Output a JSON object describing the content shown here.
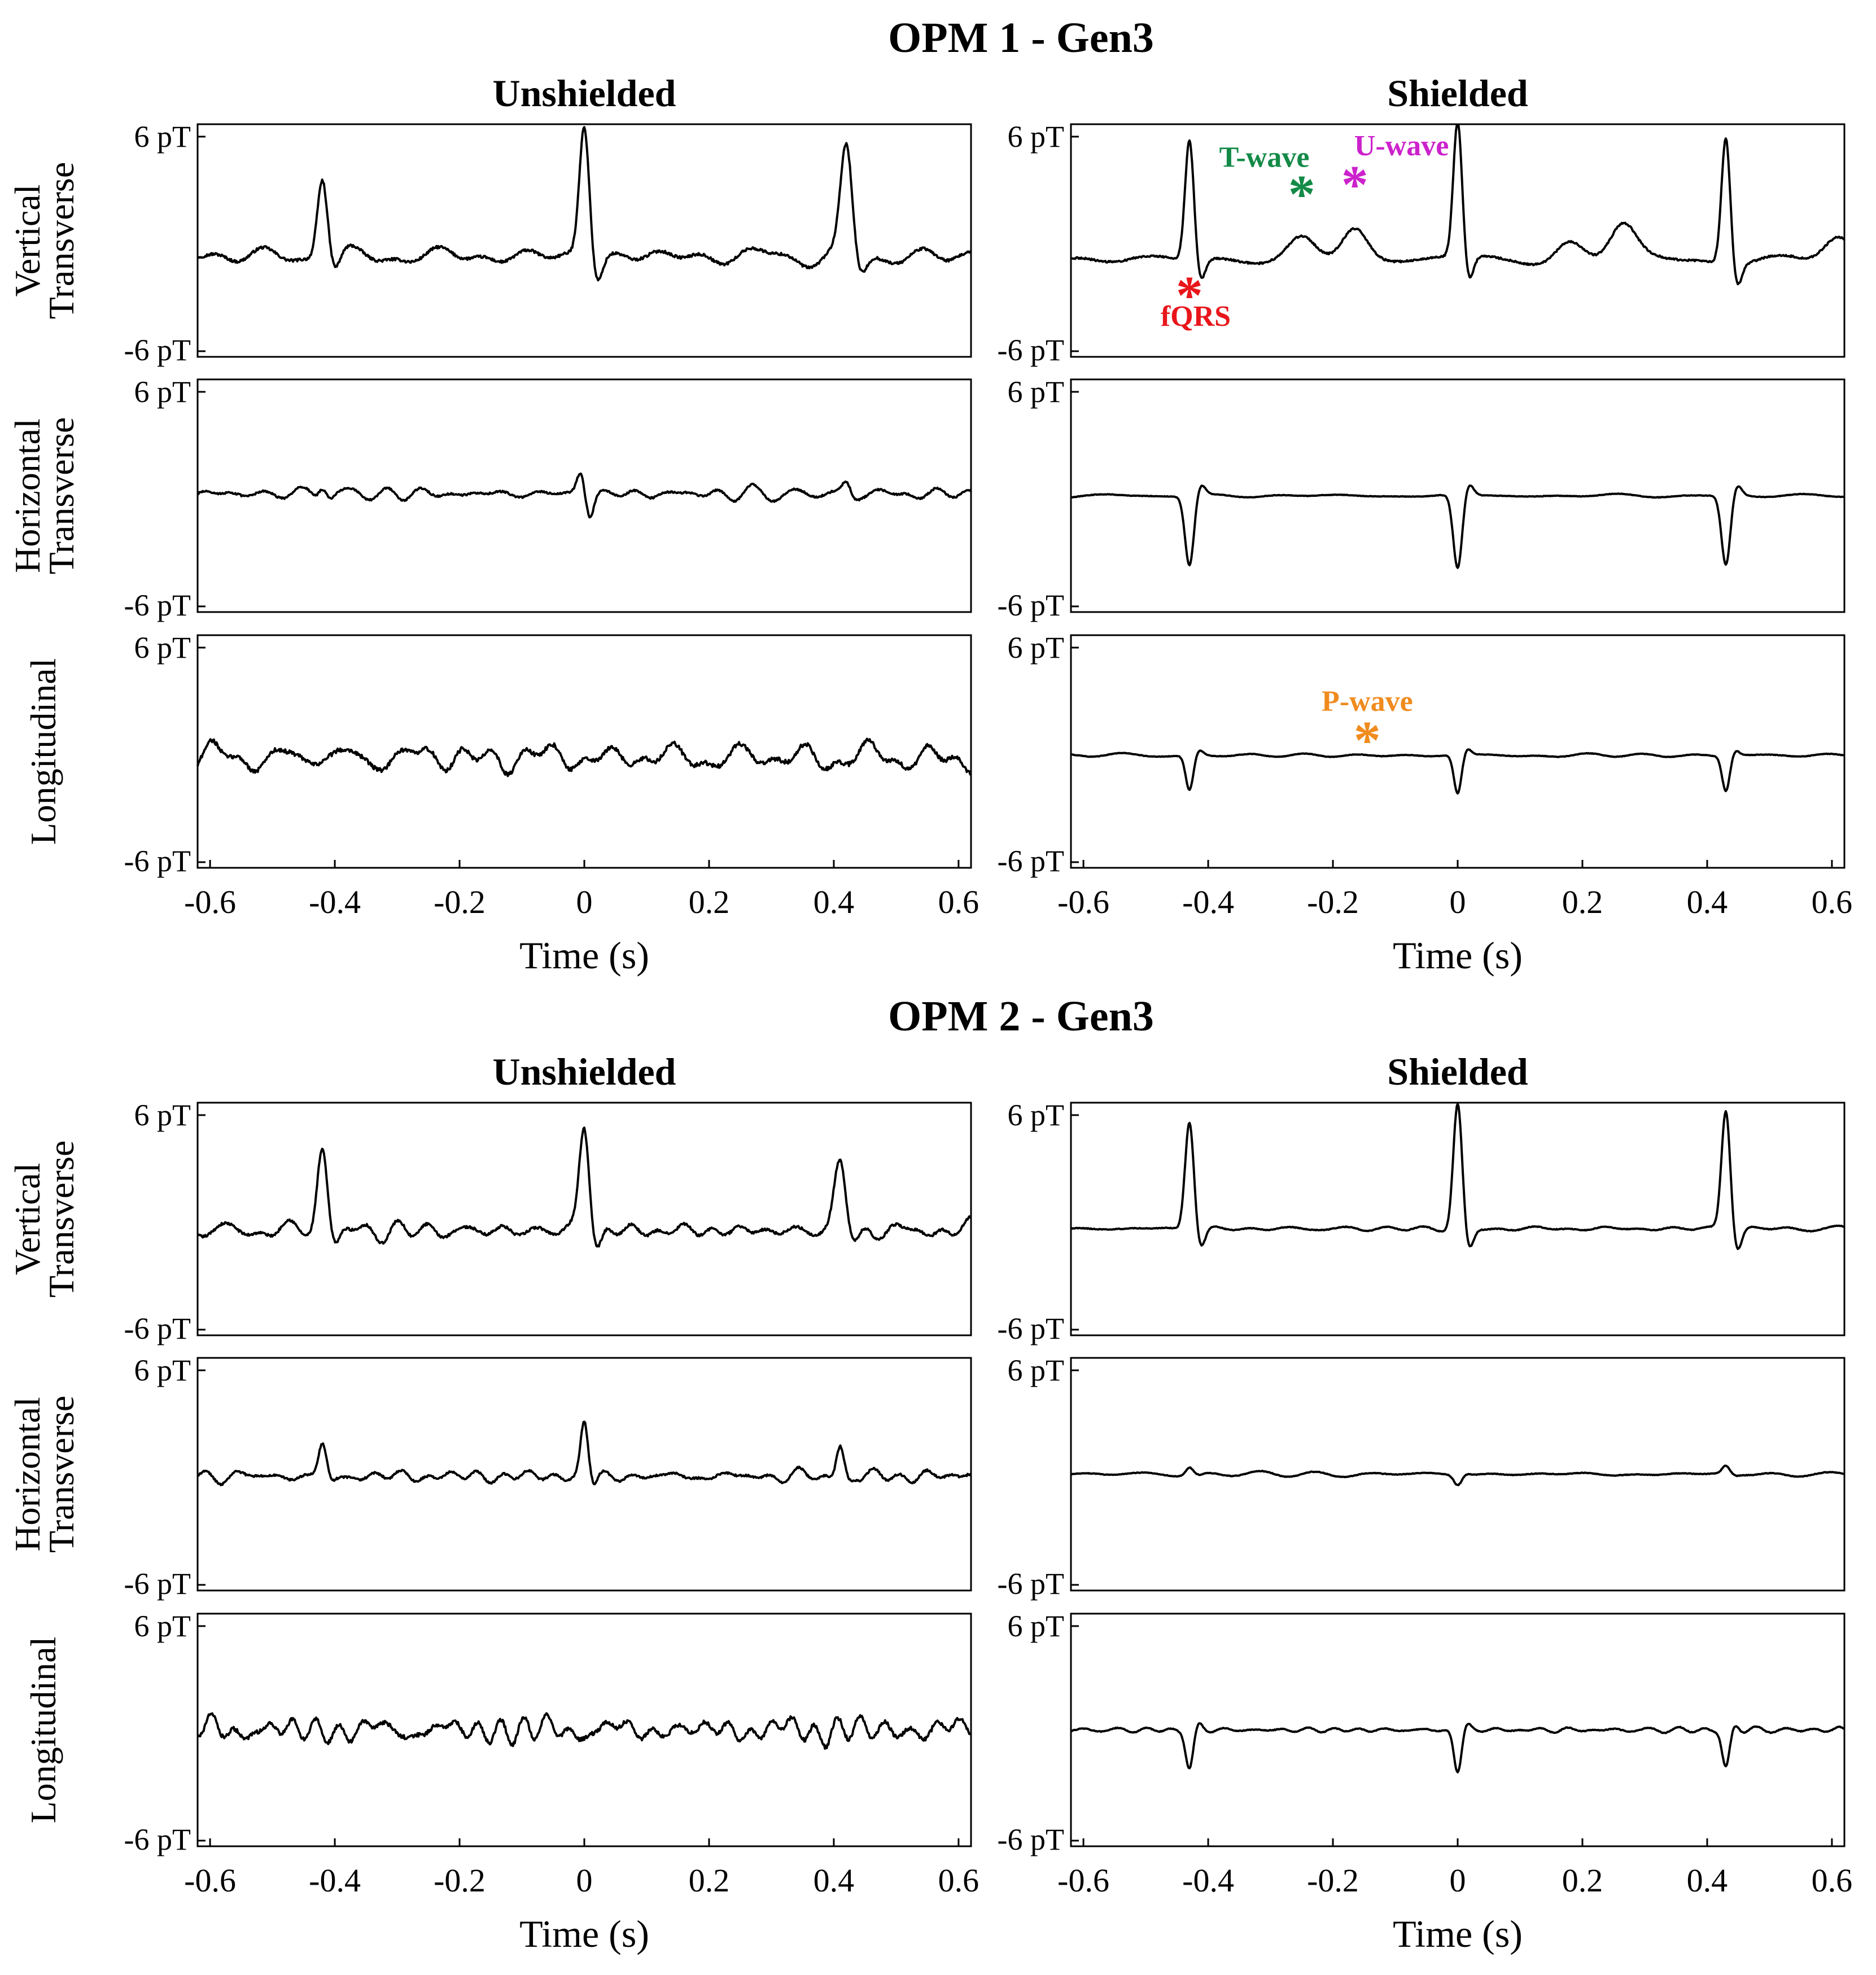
{
  "chart_data": [
    {
      "type": "line",
      "title": "OPM 1 - Gen3",
      "row_labels": [
        [
          "Vertical",
          "Transverse"
        ],
        [
          "Horizontal",
          "Transverse"
        ],
        [
          "Longitudinal"
        ]
      ],
      "columns": [
        {
          "title": "Unshielded",
          "traces": [
            {
              "name": "Vertical Transverse",
              "baseline": -0.8,
              "noise": 0.55,
              "noise_freq": 10,
              "beats": [
                {
                  "t": -0.42,
                  "kind": "spike",
                  "amp": 4.2,
                  "width": 0.008
                },
                {
                  "t": 0.0,
                  "kind": "spike",
                  "amp": 6.8,
                  "width": 0.008
                },
                {
                  "t": 0.42,
                  "kind": "spike",
                  "amp": 5.4,
                  "width": 0.009
                }
              ]
            },
            {
              "name": "Horizontal Transverse",
              "baseline": 0.1,
              "noise": 0.35,
              "noise_freq": 16,
              "beats": [
                {
                  "t": -0.42,
                  "kind": "spike",
                  "amp": 0.6,
                  "width": 0.006
                },
                {
                  "t": 0.0,
                  "kind": "biphasic",
                  "amp": 1.2,
                  "width": 0.006
                },
                {
                  "t": 0.42,
                  "kind": "spike",
                  "amp": 0.6,
                  "width": 0.006
                }
              ]
            },
            {
              "name": "Longitudinal",
              "baseline": -0.3,
              "noise": 0.85,
              "noise_freq": 12,
              "beats": []
            }
          ]
        },
        {
          "title": "Shielded",
          "traces": [
            {
              "name": "Vertical Transverse",
              "baseline": -1.0,
              "noise": 0.35,
              "noise_freq": 5,
              "twave": 1.2,
              "uwave": 1.6,
              "beats": [
                {
                  "t": -0.43,
                  "kind": "spike",
                  "amp": 6.2,
                  "width": 0.007
                },
                {
                  "t": 0.0,
                  "kind": "spike",
                  "amp": 7.0,
                  "width": 0.007
                },
                {
                  "t": 0.43,
                  "kind": "spike",
                  "amp": 6.5,
                  "width": 0.007
                }
              ]
            },
            {
              "name": "Horizontal Transverse",
              "baseline": 0.0,
              "noise": 0.1,
              "noise_freq": 6,
              "beats": [
                {
                  "t": -0.43,
                  "kind": "negspike",
                  "amp": 3.6,
                  "width": 0.007
                },
                {
                  "t": 0.0,
                  "kind": "negspike",
                  "amp": 3.8,
                  "width": 0.007
                },
                {
                  "t": 0.43,
                  "kind": "negspike",
                  "amp": 3.6,
                  "width": 0.007
                }
              ]
            },
            {
              "name": "Longitudinal",
              "baseline": -0.2,
              "noise": 0.1,
              "noise_freq": 8,
              "beats": [
                {
                  "t": -0.43,
                  "kind": "negspike",
                  "amp": 1.8,
                  "width": 0.006
                },
                {
                  "t": 0.0,
                  "kind": "negspike",
                  "amp": 2.0,
                  "width": 0.006
                },
                {
                  "t": 0.43,
                  "kind": "negspike",
                  "amp": 1.8,
                  "width": 0.006
                }
              ]
            }
          ]
        }
      ],
      "annotations": [
        {
          "label": "T-wave",
          "color": "#138a47",
          "col": 1,
          "row": 0,
          "t": -0.25,
          "v": 2.6,
          "text_t": -0.31,
          "text_v": 3.8
        },
        {
          "label": "U-wave",
          "color": "#cc22cc",
          "col": 1,
          "row": 0,
          "t": -0.165,
          "v": 3.1,
          "text_t": -0.09,
          "text_v": 4.4
        },
        {
          "label": "fQRS",
          "color": "#e8161b",
          "col": 1,
          "row": 0,
          "t": -0.43,
          "v": -2.6,
          "text_t": -0.42,
          "text_v": -4.4
        },
        {
          "label": "P-wave",
          "color": "#f08b1e",
          "col": 1,
          "row": 2,
          "t": -0.145,
          "v": 0.8,
          "text_t": -0.145,
          "text_v": 2.1
        }
      ]
    },
    {
      "type": "line",
      "title": "OPM 2 - Gen3",
      "row_labels": [
        [
          "Vertical",
          "Transverse"
        ],
        [
          "Horizontal",
          "Transverse"
        ],
        [
          "Longitudinal"
        ]
      ],
      "columns": [
        {
          "title": "Unshielded",
          "traces": [
            {
              "name": "Vertical Transverse",
              "baseline": -0.6,
              "noise": 0.5,
              "noise_freq": 14,
              "beats": [
                {
                  "t": -0.42,
                  "kind": "spike",
                  "amp": 4.4,
                  "width": 0.008
                },
                {
                  "t": 0.0,
                  "kind": "spike",
                  "amp": 5.6,
                  "width": 0.008
                },
                {
                  "t": 0.41,
                  "kind": "spike",
                  "amp": 3.6,
                  "width": 0.009
                }
              ]
            },
            {
              "name": "Horizontal Transverse",
              "baseline": -0.1,
              "noise": 0.4,
              "noise_freq": 14,
              "beats": [
                {
                  "t": -0.42,
                  "kind": "spike",
                  "amp": 1.6,
                  "width": 0.006
                },
                {
                  "t": 0.0,
                  "kind": "spike",
                  "amp": 2.8,
                  "width": 0.006
                },
                {
                  "t": 0.41,
                  "kind": "spike",
                  "amp": 1.6,
                  "width": 0.006
                }
              ]
            },
            {
              "name": "Longitudinal",
              "baseline": 0.0,
              "noise": 0.8,
              "noise_freq": 18,
              "beats": []
            }
          ]
        },
        {
          "title": "Shielded",
          "traces": [
            {
              "name": "Vertical Transverse",
              "baseline": -0.5,
              "noise": 0.15,
              "noise_freq": 10,
              "beats": [
                {
                  "t": -0.43,
                  "kind": "spike",
                  "amp": 5.6,
                  "width": 0.007
                },
                {
                  "t": 0.0,
                  "kind": "spike",
                  "amp": 6.4,
                  "width": 0.007
                },
                {
                  "t": 0.43,
                  "kind": "spike",
                  "amp": 6.2,
                  "width": 0.007
                }
              ]
            },
            {
              "name": "Horizontal Transverse",
              "baseline": 0.0,
              "noise": 0.12,
              "noise_freq": 8,
              "beats": [
                {
                  "t": -0.43,
                  "kind": "spike",
                  "amp": 0.4,
                  "width": 0.006
                },
                {
                  "t": 0.0,
                  "kind": "negspike",
                  "amp": 0.5,
                  "width": 0.006
                },
                {
                  "t": 0.43,
                  "kind": "spike",
                  "amp": 0.4,
                  "width": 0.006
                }
              ]
            },
            {
              "name": "Longitudinal",
              "baseline": 0.0,
              "noise": 0.15,
              "noise_freq": 16,
              "beats": [
                {
                  "t": -0.43,
                  "kind": "negspike",
                  "amp": 2.0,
                  "width": 0.006
                },
                {
                  "t": 0.0,
                  "kind": "negspike",
                  "amp": 2.2,
                  "width": 0.006
                },
                {
                  "t": 0.43,
                  "kind": "negspike",
                  "amp": 2.0,
                  "width": 0.006
                }
              ]
            }
          ]
        }
      ]
    }
  ],
  "axes": {
    "ylim": [
      -6,
      6
    ],
    "xlim": [
      -0.62,
      0.62
    ],
    "ytick_labels": [
      "6 pT",
      "-6 pT"
    ],
    "xticks": [
      -0.6,
      -0.4,
      -0.2,
      0,
      0.2,
      0.4,
      0.6
    ],
    "xtick_labels": [
      "-0.6",
      "-0.4",
      "-0.2",
      "0",
      "0.2",
      "0.4",
      "0.6"
    ],
    "xlabel": "Time (s)"
  }
}
